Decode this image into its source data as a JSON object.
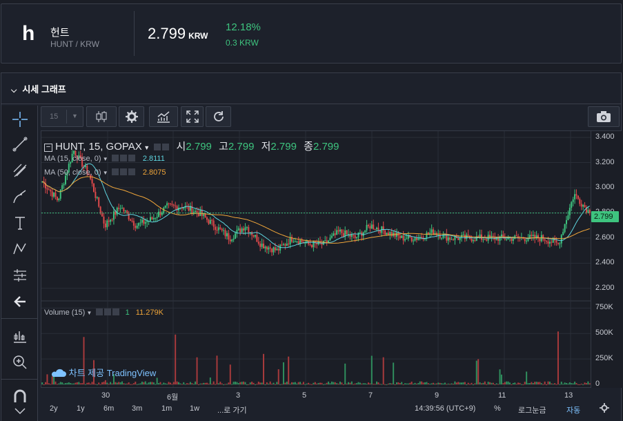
{
  "header": {
    "logo": "h",
    "name": "헌트",
    "pair": "HUNT / KRW",
    "price": "2.799",
    "currency": "KRW",
    "change_pct": "12.18%",
    "change_abs": "0.3 KRW"
  },
  "panel": {
    "title": "시세 그래프"
  },
  "toolbar": {
    "interval": "15"
  },
  "chart_header": {
    "symbol": "HUNT, 15, GOPAX",
    "open_label": "시",
    "open": "2.799",
    "high_label": "고",
    "high": "2.799",
    "low_label": "저",
    "low": "2.799",
    "close_label": "종",
    "close": "2.799"
  },
  "ma15": {
    "label": "MA (15, close, 0)",
    "value": "2.8111"
  },
  "ma50": {
    "label": "MA (50, close, 0)",
    "value": "2.8075"
  },
  "volume": {
    "label": "Volume (15)",
    "count": "1",
    "value": "11.279K"
  },
  "watermark": "차트 제공 TradingView",
  "y_price_ticks": [
    "3.400",
    "3.200",
    "3.000",
    "2.800",
    "2.600",
    "2.400",
    "2.200"
  ],
  "y_volume_ticks": [
    "750K",
    "500K",
    "250K",
    "0"
  ],
  "last_price_tag": "2.799",
  "x_ticks": [
    "30",
    "6월",
    "3",
    "5",
    "7",
    "9",
    "11",
    "13"
  ],
  "ranges": [
    "2y",
    "1y",
    "6m",
    "3m",
    "1m",
    "1w",
    "...로 가기"
  ],
  "footer": {
    "time": "14:39:56 (UTC+9)",
    "percent": "%",
    "log": "로그눈금",
    "auto": "자동"
  },
  "colors": {
    "up": "#3ec47f",
    "down": "#e0494b",
    "ma15": "#5fd6e0",
    "ma50": "#f0a63a",
    "accent": "#7ec2ff"
  },
  "chart_data": {
    "type": "candlestick",
    "x": [
      "30",
      "6월",
      "3",
      "5",
      "7",
      "9",
      "11",
      "13"
    ],
    "series": [
      {
        "name": "MA (15, close, 0)",
        "last": 2.8111
      },
      {
        "name": "MA (50, close, 0)",
        "last": 2.8075
      }
    ],
    "close_path": [
      3.05,
      2.9,
      3.3,
      3.1,
      2.7,
      2.85,
      2.7,
      2.75,
      2.85,
      2.85,
      2.8,
      2.7,
      2.6,
      2.7,
      2.55,
      2.5,
      2.6,
      2.55,
      2.55,
      2.65,
      2.6,
      2.7,
      2.65,
      2.6,
      2.6,
      2.65,
      2.6,
      2.6,
      2.6,
      2.6,
      2.6,
      2.6,
      2.6,
      2.55,
      2.95,
      2.8
    ],
    "ylim_price": [
      2.1,
      3.45
    ],
    "volume_ylim": [
      0,
      800000
    ],
    "last_price": 2.799,
    "last_volume": 11279
  }
}
